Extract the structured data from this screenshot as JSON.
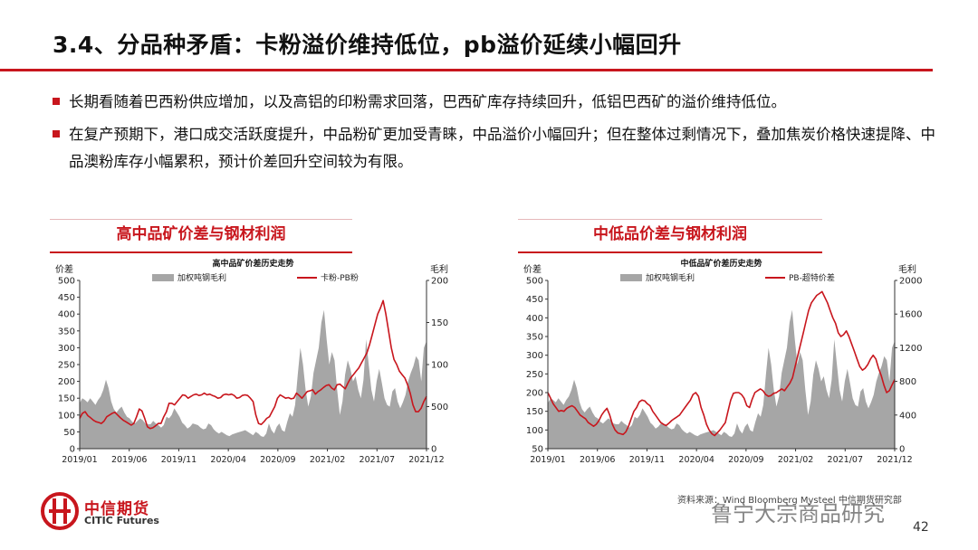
{
  "slide": {
    "title": "3.4、分品种矛盾：卡粉溢价维持低位，pb溢价延续小幅回升",
    "bullets": [
      "长期看随着巴西粉供应增加，以及高铝的印粉需求回落，巴西矿库存持续回升，低铝巴西矿的溢价维持低位。",
      "在复产预期下，港口成交活跃度提升，中品粉矿更加受青睐，中品溢价小幅回升；但在整体过剩情况下，叠加焦炭价格快速提降、中品澳粉库存小幅累积，预计价差回升空间较为有限。"
    ],
    "logo_cn": "中信期货",
    "logo_en": "CITIC Futures",
    "source_text": "资料来源：Wind Bloomberg Mysteel 中信期货研究部",
    "watermark": "鲁宁大宗商品研究",
    "page_number": "42",
    "accent_color": "#c8161d",
    "area_color": "#a6a6a6"
  },
  "chart_data": [
    {
      "type": "area+line",
      "header": "高中品矿价差与钢材利润",
      "title": "高中品矿价差历史走势",
      "y_left_label": "价差",
      "y_right_label": "毛利",
      "y_left_range": [
        0,
        500
      ],
      "y_left_ticks": [
        "0",
        "50",
        "100",
        "150",
        "200",
        "250",
        "300",
        "350",
        "400",
        "450",
        "500"
      ],
      "y_right_range": [
        0,
        2000
      ],
      "y_right_ticks": [
        "0",
        "500",
        "1000",
        "1500",
        "2000"
      ],
      "x_ticks": [
        "2019/01",
        "2019/06",
        "2019/11",
        "2020/04",
        "2020/09",
        "2021/02",
        "2021/07",
        "2021/12"
      ],
      "legend": [
        "加权吨钢毛利",
        "卡粉-PB粉"
      ],
      "series": [
        {
          "name": "加权吨钢毛利",
          "axis": "right",
          "kind": "area",
          "values": [
            540,
            600,
            580,
            550,
            600,
            560,
            520,
            580,
            620,
            700,
            820,
            720,
            560,
            470,
            430,
            470,
            500,
            430,
            380,
            360,
            320,
            300,
            330,
            360,
            340,
            300,
            290,
            290,
            330,
            300,
            280,
            250,
            280,
            380,
            360,
            400,
            480,
            430,
            380,
            310,
            280,
            240,
            260,
            300,
            290,
            280,
            250,
            230,
            240,
            300,
            280,
            230,
            200,
            180,
            200,
            180,
            160,
            150,
            170,
            180,
            190,
            200,
            210,
            220,
            200,
            180,
            160,
            200,
            180,
            150,
            140,
            180,
            300,
            220,
            180,
            260,
            300,
            220,
            200,
            320,
            420,
            380,
            520,
            880,
            1200,
            1000,
            700,
            500,
            620,
            900,
            1050,
            1200,
            1500,
            1650,
            1300,
            1000,
            1150,
            1050,
            700,
            400,
            560,
            880,
            1050,
            950,
            800,
            860,
            700,
            600,
            820,
            1300,
            1000,
            700,
            560,
            800,
            950,
            780,
            600,
            520,
            500,
            680,
            720,
            560,
            480,
            550,
            640,
            800,
            900,
            980,
            1100,
            1050,
            800,
            1200,
            1280
          ]
        },
        {
          "name": "卡粉-PB粉",
          "axis": "left",
          "kind": "line",
          "values": [
            90,
            105,
            110,
            98,
            92,
            85,
            80,
            78,
            75,
            82,
            95,
            100,
            105,
            108,
            100,
            92,
            85,
            80,
            75,
            70,
            75,
            95,
            118,
            112,
            90,
            65,
            60,
            62,
            68,
            75,
            75,
            95,
            110,
            135,
            135,
            130,
            140,
            150,
            160,
            158,
            150,
            155,
            160,
            162,
            158,
            160,
            165,
            160,
            162,
            158,
            155,
            150,
            152,
            160,
            162,
            160,
            162,
            158,
            150,
            152,
            158,
            160,
            158,
            150,
            140,
            100,
            75,
            72,
            80,
            90,
            95,
            110,
            125,
            150,
            160,
            155,
            150,
            152,
            148,
            150,
            165,
            158,
            150,
            160,
            170,
            172,
            175,
            162,
            170,
            175,
            182,
            188,
            190,
            180,
            175,
            190,
            192,
            185,
            178,
            195,
            210,
            220,
            230,
            240,
            255,
            270,
            285,
            310,
            340,
            370,
            400,
            418,
            440,
            400,
            350,
            300,
            265,
            250,
            230,
            220,
            210,
            190,
            165,
            130,
            110,
            110,
            120,
            140,
            155
          ]
        }
      ]
    },
    {
      "type": "area+line",
      "header": "中低品价差与钢材利润",
      "title": "中低品矿价差历史走势",
      "y_left_label": "价差",
      "y_right_label": "毛利",
      "y_left_range": [
        50,
        500
      ],
      "y_left_ticks": [
        "50",
        "100",
        "150",
        "200",
        "250",
        "300",
        "350",
        "400",
        "450",
        "500"
      ],
      "y_right_range": [
        0,
        2000
      ],
      "y_right_ticks": [
        "0",
        "400",
        "800",
        "1200",
        "1600",
        "2000"
      ],
      "x_ticks": [
        "2019/01",
        "2019/06",
        "2019/11",
        "2020/04",
        "2020/09",
        "2021/02",
        "2021/07",
        "2021/12"
      ],
      "legend": [
        "加权吨钢毛利",
        "PB-超特价差"
      ],
      "series": [
        {
          "name": "加权吨钢毛利",
          "axis": "right",
          "kind": "area",
          "values": [
            540,
            600,
            580,
            550,
            600,
            560,
            520,
            580,
            620,
            700,
            820,
            720,
            560,
            470,
            430,
            470,
            500,
            430,
            380,
            360,
            320,
            300,
            330,
            360,
            340,
            300,
            290,
            290,
            330,
            300,
            280,
            250,
            280,
            380,
            360,
            400,
            480,
            430,
            380,
            310,
            280,
            240,
            260,
            300,
            290,
            280,
            250,
            230,
            240,
            300,
            280,
            230,
            200,
            180,
            200,
            180,
            160,
            150,
            170,
            180,
            190,
            200,
            210,
            220,
            200,
            180,
            160,
            200,
            180,
            150,
            140,
            180,
            300,
            220,
            180,
            260,
            300,
            220,
            200,
            320,
            420,
            380,
            520,
            880,
            1200,
            1000,
            700,
            500,
            620,
            900,
            1050,
            1200,
            1500,
            1650,
            1300,
            1000,
            1150,
            1050,
            700,
            400,
            560,
            880,
            1050,
            950,
            800,
            860,
            700,
            600,
            820,
            1300,
            1000,
            700,
            560,
            800,
            950,
            780,
            600,
            520,
            500,
            680,
            720,
            560,
            480,
            550,
            640,
            800,
            900,
            980,
            1100,
            1050,
            800,
            1200,
            1280
          ]
        },
        {
          "name": "PB-超特价差",
          "axis": "left",
          "kind": "line",
          "values": [
            200,
            185,
            170,
            160,
            150,
            152,
            150,
            158,
            162,
            165,
            160,
            150,
            140,
            135,
            130,
            120,
            115,
            110,
            115,
            125,
            140,
            150,
            158,
            140,
            115,
            100,
            92,
            90,
            88,
            95,
            110,
            130,
            150,
            160,
            175,
            180,
            178,
            170,
            165,
            150,
            140,
            130,
            120,
            115,
            112,
            118,
            125,
            130,
            135,
            140,
            150,
            160,
            170,
            180,
            195,
            200,
            190,
            160,
            140,
            115,
            100,
            90,
            85,
            92,
            100,
            110,
            120,
            150,
            180,
            198,
            200,
            200,
            195,
            185,
            165,
            160,
            182,
            200,
            205,
            210,
            205,
            195,
            190,
            192,
            198,
            200,
            205,
            210,
            205,
            215,
            225,
            240,
            270,
            300,
            330,
            360,
            390,
            420,
            440,
            450,
            460,
            465,
            470,
            455,
            440,
            420,
            400,
            385,
            360,
            350,
            355,
            365,
            350,
            330,
            310,
            290,
            270,
            260,
            265,
            275,
            290,
            300,
            290,
            265,
            245,
            220,
            200,
            205,
            220,
            235
          ]
        }
      ]
    }
  ]
}
